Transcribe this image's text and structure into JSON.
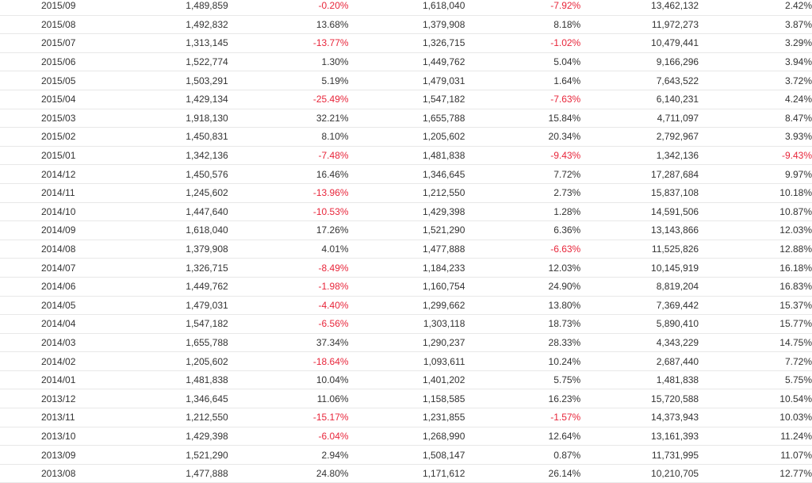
{
  "colors": {
    "text": "#333333",
    "negative": "#e8253a",
    "row_border": "#e8e8e8"
  },
  "table": {
    "rows": [
      [
        "2015/09",
        "1,489,859",
        "-0.20%",
        "1,618,040",
        "-7.92%",
        "13,462,132",
        "2.42%"
      ],
      [
        "2015/08",
        "1,492,832",
        "13.68%",
        "1,379,908",
        "8.18%",
        "11,972,273",
        "3.87%"
      ],
      [
        "2015/07",
        "1,313,145",
        "-13.77%",
        "1,326,715",
        "-1.02%",
        "10,479,441",
        "3.29%"
      ],
      [
        "2015/06",
        "1,522,774",
        "1.30%",
        "1,449,762",
        "5.04%",
        "9,166,296",
        "3.94%"
      ],
      [
        "2015/05",
        "1,503,291",
        "5.19%",
        "1,479,031",
        "1.64%",
        "7,643,522",
        "3.72%"
      ],
      [
        "2015/04",
        "1,429,134",
        "-25.49%",
        "1,547,182",
        "-7.63%",
        "6,140,231",
        "4.24%"
      ],
      [
        "2015/03",
        "1,918,130",
        "32.21%",
        "1,655,788",
        "15.84%",
        "4,711,097",
        "8.47%"
      ],
      [
        "2015/02",
        "1,450,831",
        "8.10%",
        "1,205,602",
        "20.34%",
        "2,792,967",
        "3.93%"
      ],
      [
        "2015/01",
        "1,342,136",
        "-7.48%",
        "1,481,838",
        "-9.43%",
        "1,342,136",
        "-9.43%"
      ],
      [
        "2014/12",
        "1,450,576",
        "16.46%",
        "1,346,645",
        "7.72%",
        "17,287,684",
        "9.97%"
      ],
      [
        "2014/11",
        "1,245,602",
        "-13.96%",
        "1,212,550",
        "2.73%",
        "15,837,108",
        "10.18%"
      ],
      [
        "2014/10",
        "1,447,640",
        "-10.53%",
        "1,429,398",
        "1.28%",
        "14,591,506",
        "10.87%"
      ],
      [
        "2014/09",
        "1,618,040",
        "17.26%",
        "1,521,290",
        "6.36%",
        "13,143,866",
        "12.03%"
      ],
      [
        "2014/08",
        "1,379,908",
        "4.01%",
        "1,477,888",
        "-6.63%",
        "11,525,826",
        "12.88%"
      ],
      [
        "2014/07",
        "1,326,715",
        "-8.49%",
        "1,184,233",
        "12.03%",
        "10,145,919",
        "16.18%"
      ],
      [
        "2014/06",
        "1,449,762",
        "-1.98%",
        "1,160,754",
        "24.90%",
        "8,819,204",
        "16.83%"
      ],
      [
        "2014/05",
        "1,479,031",
        "-4.40%",
        "1,299,662",
        "13.80%",
        "7,369,442",
        "15.37%"
      ],
      [
        "2014/04",
        "1,547,182",
        "-6.56%",
        "1,303,118",
        "18.73%",
        "5,890,410",
        "15.77%"
      ],
      [
        "2014/03",
        "1,655,788",
        "37.34%",
        "1,290,237",
        "28.33%",
        "4,343,229",
        "14.75%"
      ],
      [
        "2014/02",
        "1,205,602",
        "-18.64%",
        "1,093,611",
        "10.24%",
        "2,687,440",
        "7.72%"
      ],
      [
        "2014/01",
        "1,481,838",
        "10.04%",
        "1,401,202",
        "5.75%",
        "1,481,838",
        "5.75%"
      ],
      [
        "2013/12",
        "1,346,645",
        "11.06%",
        "1,158,585",
        "16.23%",
        "15,720,588",
        "10.54%"
      ],
      [
        "2013/11",
        "1,212,550",
        "-15.17%",
        "1,231,855",
        "-1.57%",
        "14,373,943",
        "10.03%"
      ],
      [
        "2013/10",
        "1,429,398",
        "-6.04%",
        "1,268,990",
        "12.64%",
        "13,161,393",
        "11.24%"
      ],
      [
        "2013/09",
        "1,521,290",
        "2.94%",
        "1,508,147",
        "0.87%",
        "11,731,995",
        "11.07%"
      ],
      [
        "2013/08",
        "1,477,888",
        "24.80%",
        "1,171,612",
        "26.14%",
        "10,210,705",
        "12.77%"
      ]
    ]
  }
}
